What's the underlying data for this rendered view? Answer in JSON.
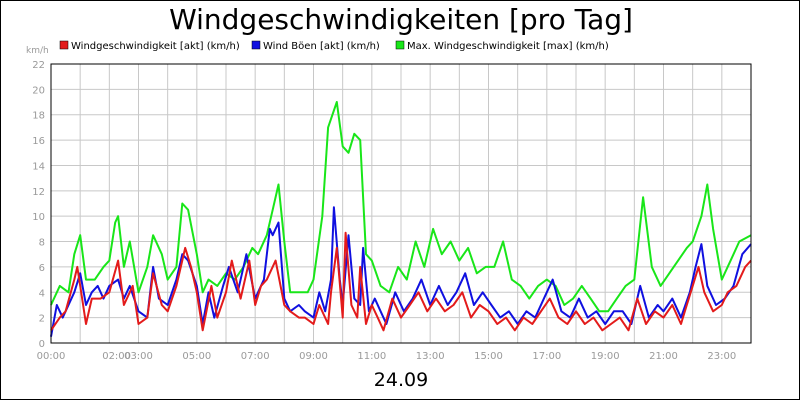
{
  "chart_data": {
    "type": "line",
    "title": "Windgeschwindigkeiten [pro Tag]",
    "ylabel": "km/h",
    "xlabel": "24.09",
    "ylim": [
      0,
      22
    ],
    "yticks": [
      0,
      2,
      4,
      6,
      8,
      10,
      12,
      14,
      16,
      18,
      20,
      22
    ],
    "xlim": [
      0,
      24
    ],
    "x_ticks": [
      {
        "x": 0,
        "label": "00:00"
      },
      {
        "x": 2.25,
        "label": "02:00"
      },
      {
        "x": 3,
        "label": "03:00"
      },
      {
        "x": 5,
        "label": "05:00"
      },
      {
        "x": 7,
        "label": "07:00"
      },
      {
        "x": 9,
        "label": "09:00"
      },
      {
        "x": 11,
        "label": "11:00"
      },
      {
        "x": 13,
        "label": "13:00"
      },
      {
        "x": 15,
        "label": "15:00"
      },
      {
        "x": 17,
        "label": "17:00"
      },
      {
        "x": 19,
        "label": "19:00"
      },
      {
        "x": 21,
        "label": "21:00"
      },
      {
        "x": 23,
        "label": "23:00"
      }
    ],
    "grid": true,
    "legend_position": "top",
    "series": [
      {
        "name": "Windgeschwindigkeit [akt] (km/h)",
        "color": "#e31b1b",
        "points": [
          [
            0.0,
            1.0
          ],
          [
            0.3,
            2.0
          ],
          [
            0.5,
            2.5
          ],
          [
            0.8,
            5.0
          ],
          [
            0.9,
            6.0
          ],
          [
            1.0,
            4.5
          ],
          [
            1.2,
            1.5
          ],
          [
            1.4,
            3.5
          ],
          [
            1.7,
            3.5
          ],
          [
            2.0,
            4.0
          ],
          [
            2.3,
            6.5
          ],
          [
            2.5,
            3.0
          ],
          [
            2.8,
            4.5
          ],
          [
            3.0,
            1.5
          ],
          [
            3.3,
            2.0
          ],
          [
            3.5,
            5.5
          ],
          [
            3.8,
            3.0
          ],
          [
            4.0,
            2.5
          ],
          [
            4.3,
            4.5
          ],
          [
            4.6,
            7.5
          ],
          [
            4.8,
            6.0
          ],
          [
            5.0,
            4.0
          ],
          [
            5.2,
            1.0
          ],
          [
            5.5,
            4.5
          ],
          [
            5.7,
            2.0
          ],
          [
            6.0,
            4.0
          ],
          [
            6.2,
            6.5
          ],
          [
            6.5,
            3.5
          ],
          [
            6.8,
            6.5
          ],
          [
            7.0,
            3.0
          ],
          [
            7.2,
            4.5
          ],
          [
            7.4,
            5.0
          ],
          [
            7.7,
            6.5
          ],
          [
            8.0,
            3.0
          ],
          [
            8.2,
            2.5
          ],
          [
            8.5,
            2.0
          ],
          [
            8.7,
            2.0
          ],
          [
            9.0,
            1.5
          ],
          [
            9.2,
            3.0
          ],
          [
            9.5,
            1.5
          ],
          [
            9.6,
            4.0
          ],
          [
            9.8,
            7.5
          ],
          [
            10.0,
            2.0
          ],
          [
            10.1,
            8.7
          ],
          [
            10.3,
            3.0
          ],
          [
            10.5,
            2.0
          ],
          [
            10.6,
            6.0
          ],
          [
            10.8,
            1.5
          ],
          [
            11.0,
            3.0
          ],
          [
            11.2,
            2.0
          ],
          [
            11.4,
            1.0
          ],
          [
            11.7,
            3.5
          ],
          [
            12.0,
            2.0
          ],
          [
            12.3,
            3.0
          ],
          [
            12.6,
            4.0
          ],
          [
            12.9,
            2.5
          ],
          [
            13.2,
            3.5
          ],
          [
            13.5,
            2.5
          ],
          [
            13.8,
            3.0
          ],
          [
            14.1,
            4.0
          ],
          [
            14.4,
            2.0
          ],
          [
            14.7,
            3.0
          ],
          [
            15.0,
            2.5
          ],
          [
            15.3,
            1.5
          ],
          [
            15.6,
            2.0
          ],
          [
            15.9,
            1.0
          ],
          [
            16.2,
            2.0
          ],
          [
            16.5,
            1.5
          ],
          [
            16.8,
            2.5
          ],
          [
            17.1,
            3.5
          ],
          [
            17.4,
            2.0
          ],
          [
            17.7,
            1.5
          ],
          [
            18.0,
            2.5
          ],
          [
            18.3,
            1.5
          ],
          [
            18.6,
            2.0
          ],
          [
            18.9,
            1.0
          ],
          [
            19.2,
            1.5
          ],
          [
            19.5,
            2.0
          ],
          [
            19.8,
            1.0
          ],
          [
            20.1,
            3.5
          ],
          [
            20.4,
            1.5
          ],
          [
            20.7,
            2.5
          ],
          [
            21.0,
            2.0
          ],
          [
            21.3,
            3.0
          ],
          [
            21.6,
            1.5
          ],
          [
            21.8,
            3.0
          ],
          [
            22.0,
            4.5
          ],
          [
            22.2,
            6.0
          ],
          [
            22.4,
            4.0
          ],
          [
            22.7,
            2.5
          ],
          [
            23.0,
            3.0
          ],
          [
            23.2,
            4.0
          ],
          [
            23.5,
            4.5
          ],
          [
            23.8,
            6.0
          ],
          [
            24.0,
            6.5
          ]
        ]
      },
      {
        "name": "Wind Böen [akt] (km/h)",
        "color": "#1010e0",
        "points": [
          [
            0.0,
            0.5
          ],
          [
            0.2,
            3.0
          ],
          [
            0.4,
            2.0
          ],
          [
            0.6,
            3.0
          ],
          [
            0.8,
            4.0
          ],
          [
            1.0,
            5.5
          ],
          [
            1.2,
            3.0
          ],
          [
            1.4,
            4.0
          ],
          [
            1.6,
            4.5
          ],
          [
            1.8,
            3.5
          ],
          [
            2.0,
            4.5
          ],
          [
            2.3,
            5.0
          ],
          [
            2.5,
            3.5
          ],
          [
            2.7,
            4.5
          ],
          [
            3.0,
            2.5
          ],
          [
            3.3,
            2.0
          ],
          [
            3.5,
            6.0
          ],
          [
            3.7,
            3.5
          ],
          [
            4.0,
            3.0
          ],
          [
            4.3,
            5.0
          ],
          [
            4.5,
            7.0
          ],
          [
            4.7,
            6.5
          ],
          [
            5.0,
            4.5
          ],
          [
            5.2,
            1.5
          ],
          [
            5.4,
            4.0
          ],
          [
            5.6,
            2.0
          ],
          [
            5.9,
            4.5
          ],
          [
            6.1,
            6.0
          ],
          [
            6.4,
            4.0
          ],
          [
            6.7,
            7.0
          ],
          [
            7.0,
            3.5
          ],
          [
            7.3,
            5.0
          ],
          [
            7.5,
            9.0
          ],
          [
            7.6,
            8.5
          ],
          [
            7.8,
            9.5
          ],
          [
            8.0,
            3.5
          ],
          [
            8.2,
            2.5
          ],
          [
            8.5,
            3.0
          ],
          [
            8.7,
            2.5
          ],
          [
            9.0,
            2.0
          ],
          [
            9.2,
            4.0
          ],
          [
            9.4,
            2.5
          ],
          [
            9.6,
            5.0
          ],
          [
            9.7,
            10.7
          ],
          [
            9.9,
            5.0
          ],
          [
            10.0,
            3.0
          ],
          [
            10.2,
            8.5
          ],
          [
            10.4,
            3.5
          ],
          [
            10.6,
            3.0
          ],
          [
            10.7,
            7.5
          ],
          [
            10.9,
            2.5
          ],
          [
            11.1,
            3.5
          ],
          [
            11.3,
            2.5
          ],
          [
            11.5,
            1.5
          ],
          [
            11.8,
            4.0
          ],
          [
            12.1,
            2.5
          ],
          [
            12.4,
            3.5
          ],
          [
            12.7,
            5.0
          ],
          [
            13.0,
            3.0
          ],
          [
            13.3,
            4.5
          ],
          [
            13.6,
            3.0
          ],
          [
            13.9,
            4.0
          ],
          [
            14.2,
            5.5
          ],
          [
            14.5,
            3.0
          ],
          [
            14.8,
            4.0
          ],
          [
            15.1,
            3.0
          ],
          [
            15.4,
            2.0
          ],
          [
            15.7,
            2.5
          ],
          [
            16.0,
            1.5
          ],
          [
            16.3,
            2.5
          ],
          [
            16.6,
            2.0
          ],
          [
            16.9,
            3.5
          ],
          [
            17.2,
            5.0
          ],
          [
            17.5,
            2.5
          ],
          [
            17.8,
            2.0
          ],
          [
            18.1,
            3.5
          ],
          [
            18.4,
            2.0
          ],
          [
            18.7,
            2.5
          ],
          [
            19.0,
            1.5
          ],
          [
            19.3,
            2.5
          ],
          [
            19.6,
            2.5
          ],
          [
            19.9,
            1.5
          ],
          [
            20.2,
            4.5
          ],
          [
            20.5,
            2.0
          ],
          [
            20.8,
            3.0
          ],
          [
            21.0,
            2.5
          ],
          [
            21.3,
            3.5
          ],
          [
            21.6,
            2.0
          ],
          [
            21.9,
            4.0
          ],
          [
            22.1,
            6.0
          ],
          [
            22.3,
            7.8
          ],
          [
            22.5,
            4.5
          ],
          [
            22.8,
            3.0
          ],
          [
            23.1,
            3.5
          ],
          [
            23.4,
            4.5
          ],
          [
            23.7,
            7.0
          ],
          [
            24.0,
            7.8
          ]
        ]
      },
      {
        "name": "Max. Windgeschwindigkeit [max] (km/h)",
        "color": "#19e619",
        "points": [
          [
            0.0,
            3.0
          ],
          [
            0.3,
            4.5
          ],
          [
            0.6,
            4.0
          ],
          [
            0.8,
            7.0
          ],
          [
            1.0,
            8.5
          ],
          [
            1.2,
            5.0
          ],
          [
            1.5,
            5.0
          ],
          [
            1.8,
            6.0
          ],
          [
            2.0,
            6.5
          ],
          [
            2.2,
            9.5
          ],
          [
            2.3,
            10.0
          ],
          [
            2.5,
            6.0
          ],
          [
            2.7,
            8.0
          ],
          [
            3.0,
            4.0
          ],
          [
            3.3,
            6.0
          ],
          [
            3.5,
            8.5
          ],
          [
            3.8,
            7.0
          ],
          [
            4.0,
            5.0
          ],
          [
            4.3,
            6.0
          ],
          [
            4.5,
            11.0
          ],
          [
            4.7,
            10.5
          ],
          [
            5.0,
            7.0
          ],
          [
            5.2,
            4.0
          ],
          [
            5.4,
            5.0
          ],
          [
            5.7,
            4.5
          ],
          [
            6.0,
            5.5
          ],
          [
            6.3,
            5.0
          ],
          [
            6.6,
            6.0
          ],
          [
            6.9,
            7.5
          ],
          [
            7.1,
            7.0
          ],
          [
            7.4,
            8.5
          ],
          [
            7.6,
            10.5
          ],
          [
            7.8,
            12.5
          ],
          [
            8.0,
            8.0
          ],
          [
            8.2,
            4.0
          ],
          [
            8.5,
            4.0
          ],
          [
            8.8,
            4.0
          ],
          [
            9.0,
            5.0
          ],
          [
            9.3,
            10.0
          ],
          [
            9.5,
            17.0
          ],
          [
            9.8,
            19.0
          ],
          [
            10.0,
            15.5
          ],
          [
            10.2,
            15.0
          ],
          [
            10.4,
            16.5
          ],
          [
            10.6,
            16.0
          ],
          [
            10.8,
            7.0
          ],
          [
            11.0,
            6.5
          ],
          [
            11.3,
            4.5
          ],
          [
            11.6,
            4.0
          ],
          [
            11.9,
            6.0
          ],
          [
            12.2,
            5.0
          ],
          [
            12.5,
            8.0
          ],
          [
            12.8,
            6.0
          ],
          [
            13.1,
            9.0
          ],
          [
            13.4,
            7.0
          ],
          [
            13.7,
            8.0
          ],
          [
            14.0,
            6.5
          ],
          [
            14.3,
            7.5
          ],
          [
            14.6,
            5.5
          ],
          [
            14.9,
            6.0
          ],
          [
            15.2,
            6.0
          ],
          [
            15.5,
            8.0
          ],
          [
            15.8,
            5.0
          ],
          [
            16.1,
            4.5
          ],
          [
            16.4,
            3.5
          ],
          [
            16.7,
            4.5
          ],
          [
            17.0,
            5.0
          ],
          [
            17.3,
            4.5
          ],
          [
            17.6,
            3.0
          ],
          [
            17.9,
            3.5
          ],
          [
            18.2,
            4.5
          ],
          [
            18.5,
            3.5
          ],
          [
            18.8,
            2.5
          ],
          [
            19.1,
            2.5
          ],
          [
            19.4,
            3.5
          ],
          [
            19.7,
            4.5
          ],
          [
            20.0,
            5.0
          ],
          [
            20.3,
            11.5
          ],
          [
            20.6,
            6.0
          ],
          [
            20.9,
            4.5
          ],
          [
            21.2,
            5.5
          ],
          [
            21.5,
            6.5
          ],
          [
            21.8,
            7.5
          ],
          [
            22.0,
            8.0
          ],
          [
            22.3,
            10.0
          ],
          [
            22.5,
            12.5
          ],
          [
            22.7,
            9.0
          ],
          [
            23.0,
            5.0
          ],
          [
            23.3,
            6.5
          ],
          [
            23.6,
            8.0
          ],
          [
            24.0,
            8.5
          ]
        ]
      }
    ]
  }
}
